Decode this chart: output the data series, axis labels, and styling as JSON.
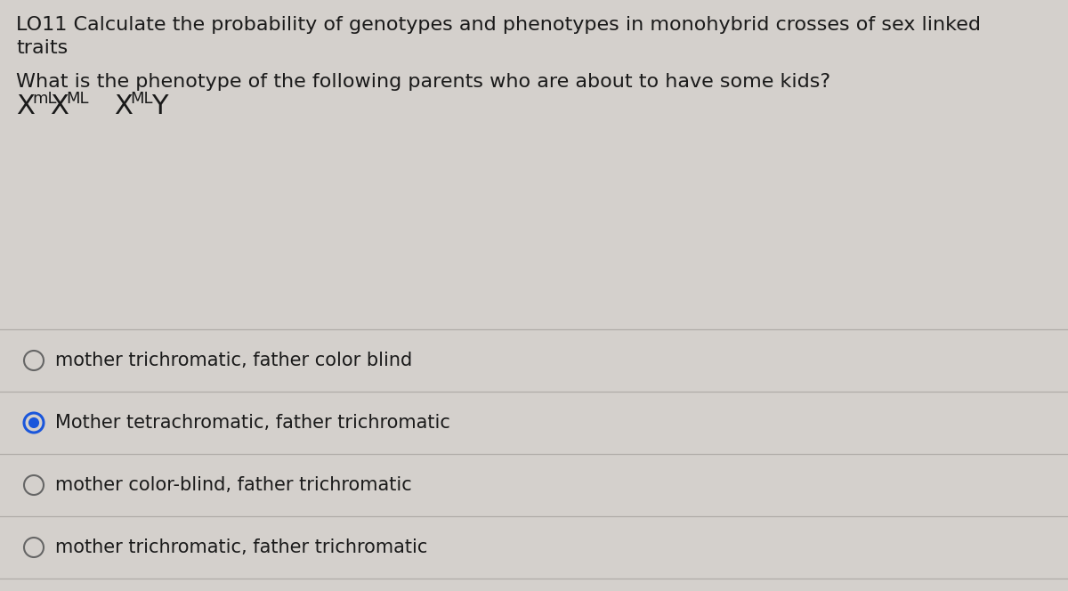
{
  "background_color": "#d4d0cc",
  "title_line1": "LO11 Calculate the probability of genotypes and phenotypes in monohybrid crosses of sex linked",
  "title_line2": "traits",
  "question": "What is the phenotype of the following parents who are about to have some kids?",
  "options": [
    {
      "text": "mother trichromatic, father color blind",
      "selected": false
    },
    {
      "text": "Mother tetrachromatic, father trichromatic",
      "selected": true
    },
    {
      "text": "mother color-blind, father trichromatic",
      "selected": false
    },
    {
      "text": "mother trichromatic, father trichromatic",
      "selected": false
    }
  ],
  "divider_color": "#b0aca8",
  "text_color": "#1a1a1a",
  "selected_color": "#1a56db",
  "unselected_color": "#666666",
  "font_size_title": 16,
  "font_size_question": 16,
  "font_size_genotype_large": 22,
  "font_size_genotype_super": 13,
  "font_size_options": 15
}
